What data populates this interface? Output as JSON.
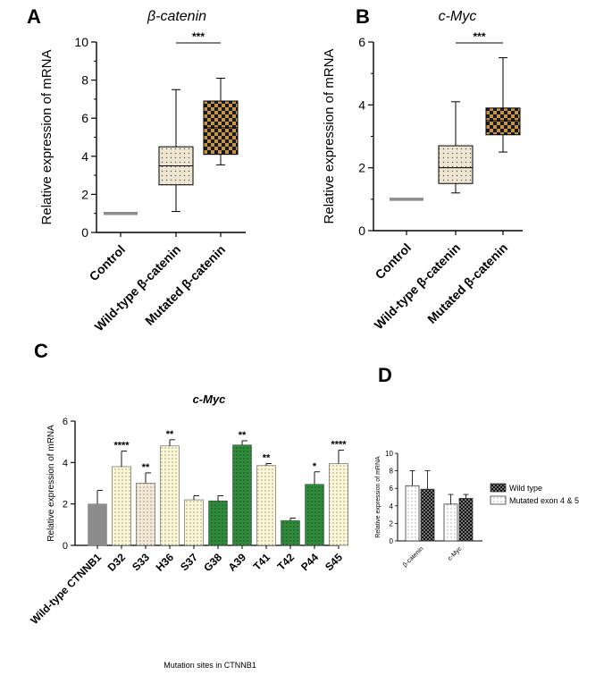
{
  "chart_data": [
    {
      "panel": "A",
      "type": "box",
      "title": "β-catenin",
      "ylabel": "Relative expression of mRNA",
      "ylim": [
        0,
        10
      ],
      "yticks": [
        "0",
        "2",
        "4",
        "6",
        "8",
        "10"
      ],
      "significance": "***",
      "categories": [
        {
          "label": "Control",
          "kind": "line",
          "value": 1.0,
          "fill": "#8c8c8c"
        },
        {
          "label": "Wild-type β-catenin",
          "kind": "box",
          "min": 1.1,
          "q1": 2.5,
          "median": 3.5,
          "q3": 4.5,
          "max": 7.5,
          "fill": "dots-light"
        },
        {
          "label": "Mutated β-catenin",
          "kind": "box",
          "min": 3.55,
          "q1": 4.1,
          "median": 5.5,
          "q3": 6.9,
          "max": 8.1,
          "fill": "checker-brown"
        }
      ]
    },
    {
      "panel": "B",
      "type": "box",
      "title": "c-Myc",
      "ylabel": "Relative expression of mRNA",
      "ylim": [
        0,
        6
      ],
      "yticks": [
        "0",
        "2",
        "4",
        "6"
      ],
      "significance": "***",
      "categories": [
        {
          "label": "Control",
          "kind": "line",
          "value": 1.0,
          "fill": "#8c8c8c"
        },
        {
          "label": "Wild-type β-catenin",
          "kind": "box",
          "min": 1.2,
          "q1": 1.5,
          "median": 2.0,
          "q3": 2.7,
          "max": 4.1,
          "fill": "dots-light"
        },
        {
          "label": "Mutated β-catenin",
          "kind": "box",
          "min": 2.5,
          "q1": 3.05,
          "median": 3.5,
          "q3": 3.9,
          "max": 5.5,
          "fill": "checker-brown"
        }
      ]
    },
    {
      "panel": "C",
      "type": "bar",
      "title": "c-Myc",
      "ylabel": "Relative expression of mRNA",
      "xlabel": "Mutation sites in CTNNB1",
      "ylim": [
        0,
        6
      ],
      "yticks": [
        "0",
        "2",
        "4",
        "6"
      ],
      "categories": [
        "Wild-type CTNNB1",
        "D32",
        "S33",
        "H36",
        "S37",
        "G38",
        "A39",
        "T41",
        "T42",
        "P44",
        "S45"
      ],
      "values": [
        2.0,
        3.8,
        3.0,
        4.8,
        2.2,
        2.15,
        4.85,
        3.85,
        1.2,
        2.95,
        3.95
      ],
      "errors": [
        0.65,
        0.75,
        0.5,
        0.3,
        0.2,
        0.25,
        0.2,
        0.1,
        0.12,
        0.6,
        0.65
      ],
      "stars": [
        "",
        "****",
        "**",
        "**",
        "",
        "",
        "**",
        "**",
        "",
        "*",
        "****"
      ],
      "fills": [
        "gray",
        "dots-yellow",
        "dots-beige",
        "dots-yellow",
        "dots-yellow",
        "dots-green",
        "dots-green",
        "dots-yellow",
        "dots-green",
        "dots-green",
        "dots-yellow"
      ]
    },
    {
      "panel": "D",
      "type": "bar",
      "ylabel": "Relative expression of mRNA",
      "ylim": [
        0,
        10
      ],
      "yticks": [
        "0",
        "2",
        "4",
        "6",
        "8",
        "10"
      ],
      "categories": [
        "β-catenin",
        "c-Myc"
      ],
      "series": [
        {
          "name": "Mutated exon 4 & 5",
          "values": [
            6.3,
            4.2
          ],
          "errors": [
            1.7,
            1.1
          ],
          "fill": "dots-white"
        },
        {
          "name": "Wild type",
          "values": [
            5.9,
            4.85
          ],
          "errors": [
            2.1,
            0.45
          ],
          "fill": "checker-dark"
        }
      ],
      "legend": [
        "Wild type",
        "Mutated exon 4 & 5"
      ]
    }
  ],
  "panel_labels": {
    "a": "A",
    "b": "B",
    "c": "C",
    "d": "D"
  }
}
